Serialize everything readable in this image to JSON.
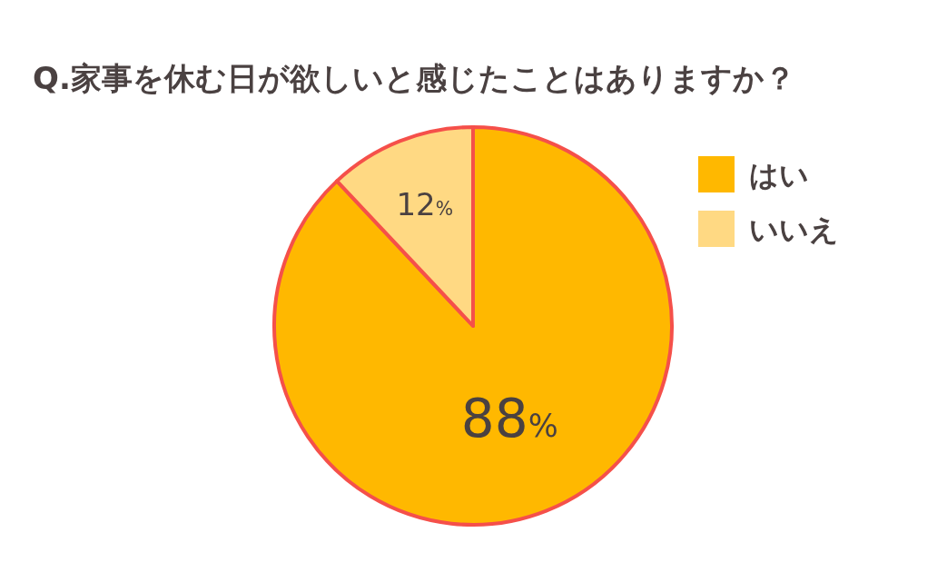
{
  "chart_data": {
    "type": "pie",
    "title": "Q.家事を休む日が欲しいと感じたことはありますか？",
    "categories": [
      "はい",
      "いいえ"
    ],
    "values": [
      88,
      12
    ],
    "colors": [
      "#ffb800",
      "#ffd983"
    ],
    "value_labels": [
      "88%",
      "12%"
    ],
    "legend": "right"
  }
}
